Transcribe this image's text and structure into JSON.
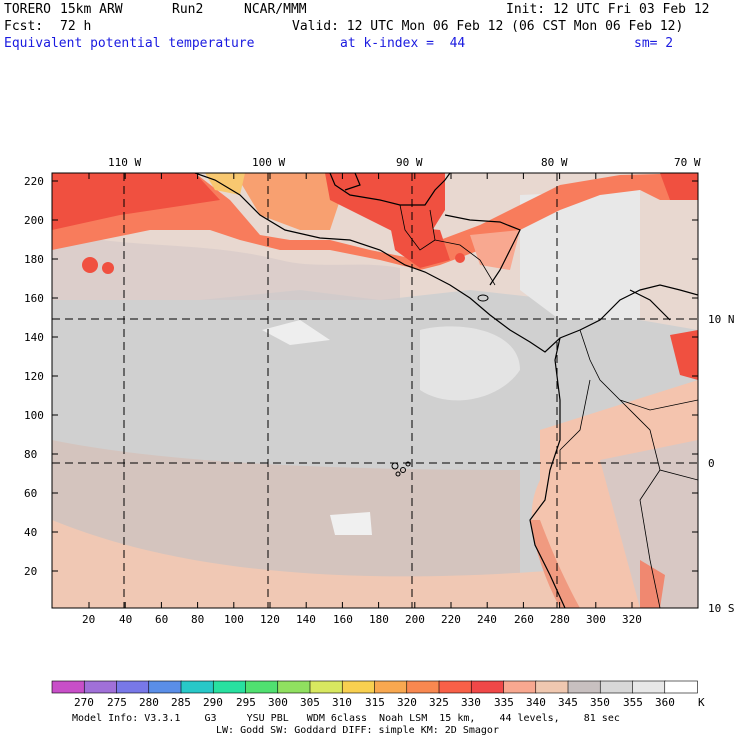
{
  "header": {
    "model": "TORERO",
    "resolution": "15km ARW",
    "run": "Run2",
    "org": "NCAR/MMM",
    "init": "Init: 12 UTC Fri 03 Feb 12",
    "fcst_label": "Fcst:",
    "fcst_value": "72 h",
    "valid": "Valid: 12 UTC Mon 06 Feb 12 (06 CST Mon 06 Feb 12)",
    "field": "Equivalent potential temperature",
    "level": "at k-index =  44",
    "smoothing": "sm= 2"
  },
  "map": {
    "lon_labels": [
      "110 W",
      "100 W",
      "90 W",
      "80 W",
      "70 W"
    ],
    "lat_labels": [
      "10 N",
      "0",
      "10 S"
    ],
    "y_ticks": [
      "220",
      "200",
      "180",
      "160",
      "140",
      "120",
      "100",
      "80",
      "60",
      "40",
      "20"
    ],
    "x_ticks": [
      "20",
      "40",
      "60",
      "80",
      "100",
      "120",
      "140",
      "160",
      "180",
      "200",
      "220",
      "240",
      "260",
      "280",
      "300",
      "320"
    ]
  },
  "colorbar": {
    "labels": [
      "270",
      "275",
      "280",
      "285",
      "290",
      "295",
      "300",
      "305",
      "310",
      "315",
      "320",
      "325",
      "330",
      "335",
      "340",
      "345",
      "350",
      "355",
      "360"
    ],
    "unit": "K",
    "colors": [
      "#c84fc8",
      "#a070d8",
      "#7878e8",
      "#5a8ee8",
      "#28c8c8",
      "#28e0a0",
      "#50e070",
      "#90e060",
      "#d8e860",
      "#f8d050",
      "#f8a850",
      "#f88850",
      "#f86048",
      "#f04848",
      "#f8a890",
      "#f0c8b0",
      "#c8c0c0",
      "#d8d8d8",
      "#e8e8e8",
      "#ffffff"
    ]
  },
  "footer": {
    "line1": "Model Info: V3.3.1    G3     YSU PBL   WDM 6class  Noah LSM  15 km,    44 levels,    81 sec",
    "line2": "LW: Godd SW: Goddard DIFF: simple KM: 2D Smagor"
  }
}
